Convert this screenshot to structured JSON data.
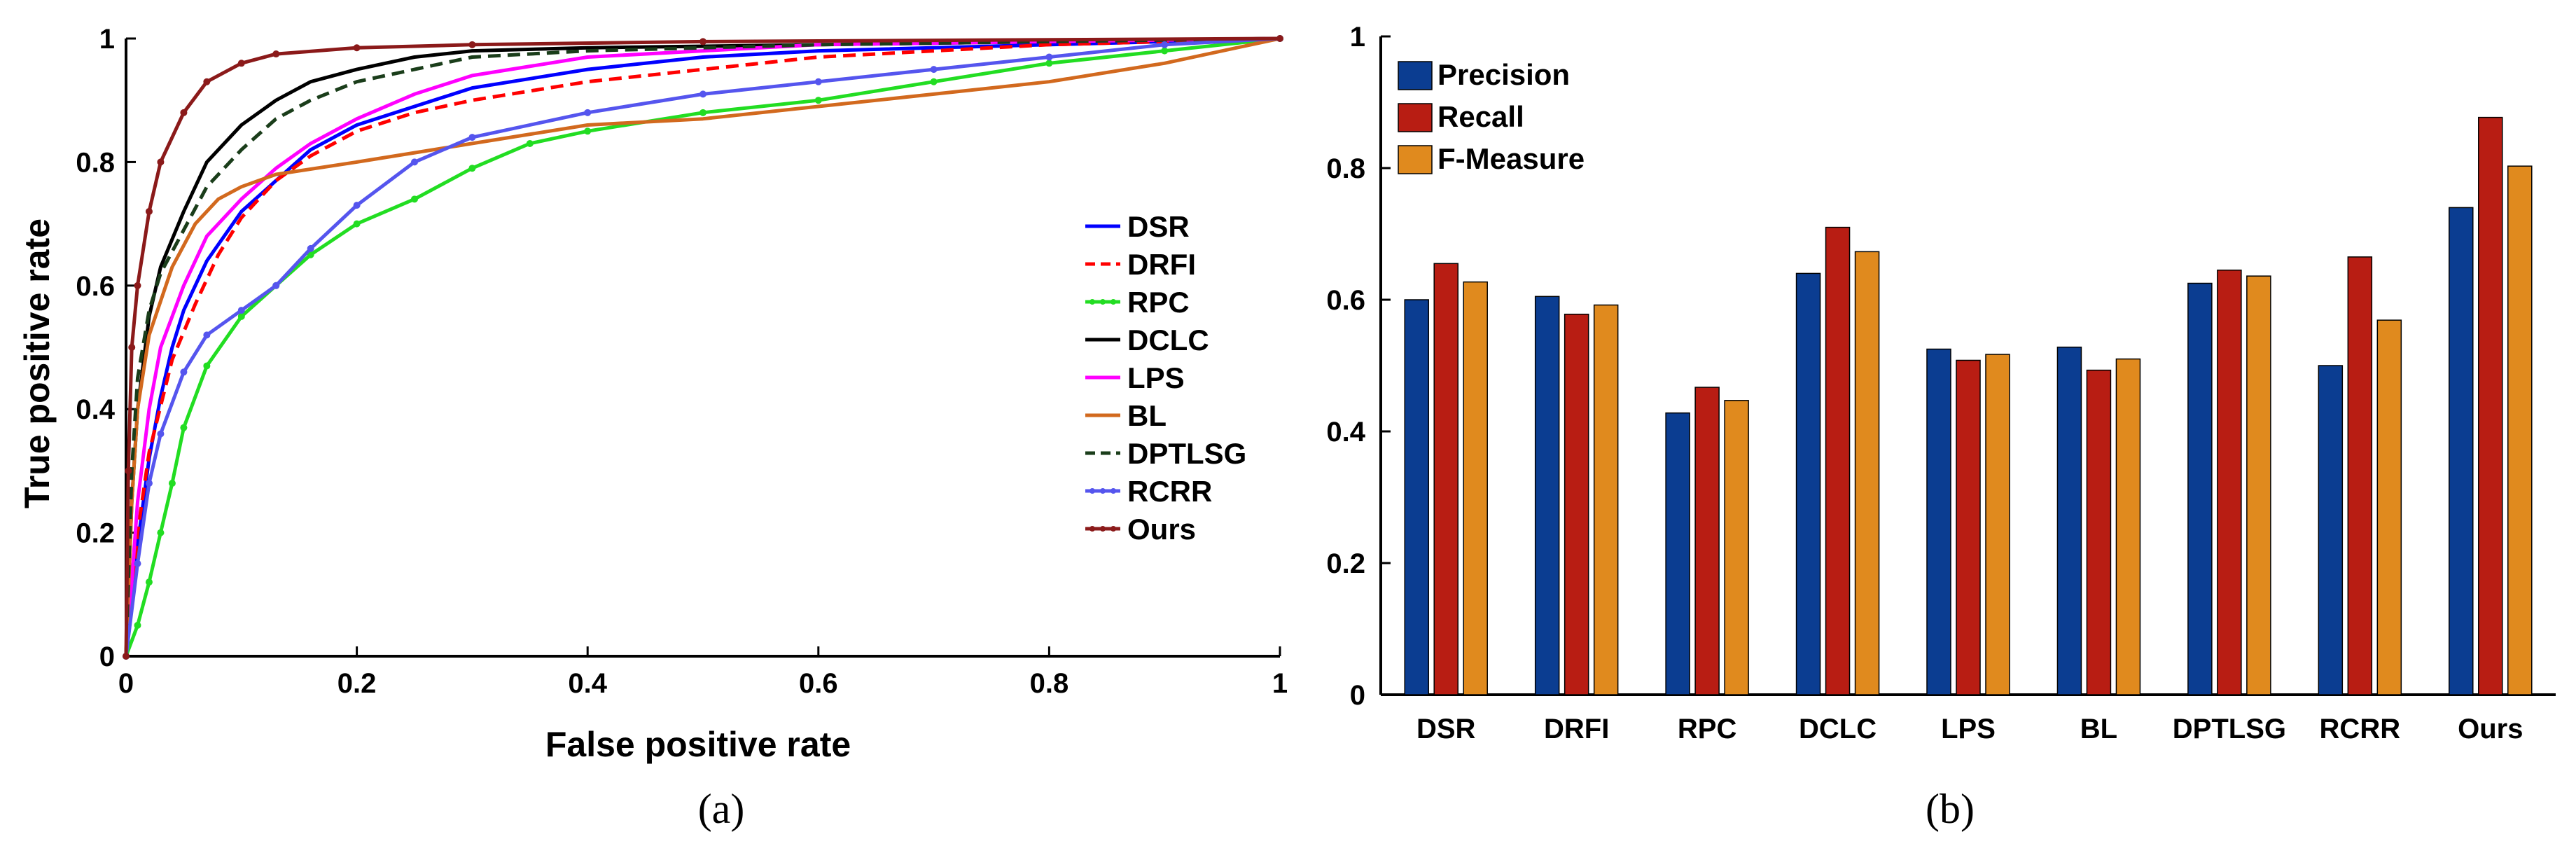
{
  "chart_data": [
    {
      "type": "line",
      "panel_label": "(a)",
      "xlabel": "False positive rate",
      "ylabel": "True positive rate",
      "xlim": [
        0,
        1
      ],
      "ylim": [
        0,
        1
      ],
      "xticks": [
        "0",
        "0.2",
        "0.4",
        "0.6",
        "0.8",
        "1"
      ],
      "yticks": [
        "0",
        "0.2",
        "0.4",
        "0.6",
        "0.8",
        "1"
      ],
      "legend_position": "right",
      "series": [
        {
          "name": "DSR",
          "color": "#0000ff",
          "dash": "solid",
          "points": [
            [
              0,
              0
            ],
            [
              0.005,
              0.08
            ],
            [
              0.01,
              0.18
            ],
            [
              0.02,
              0.32
            ],
            [
              0.03,
              0.42
            ],
            [
              0.04,
              0.5
            ],
            [
              0.05,
              0.56
            ],
            [
              0.07,
              0.64
            ],
            [
              0.1,
              0.72
            ],
            [
              0.13,
              0.77
            ],
            [
              0.16,
              0.82
            ],
            [
              0.2,
              0.86
            ],
            [
              0.25,
              0.89
            ],
            [
              0.3,
              0.92
            ],
            [
              0.4,
              0.95
            ],
            [
              0.5,
              0.97
            ],
            [
              0.6,
              0.98
            ],
            [
              0.8,
              0.99
            ],
            [
              1,
              1
            ]
          ]
        },
        {
          "name": "DRFI",
          "color": "#ff0000",
          "dash": "dashed",
          "points": [
            [
              0,
              0
            ],
            [
              0.005,
              0.1
            ],
            [
              0.01,
              0.2
            ],
            [
              0.02,
              0.33
            ],
            [
              0.04,
              0.48
            ],
            [
              0.06,
              0.57
            ],
            [
              0.08,
              0.65
            ],
            [
              0.1,
              0.71
            ],
            [
              0.13,
              0.77
            ],
            [
              0.16,
              0.81
            ],
            [
              0.2,
              0.85
            ],
            [
              0.25,
              0.88
            ],
            [
              0.3,
              0.9
            ],
            [
              0.4,
              0.93
            ],
            [
              0.5,
              0.95
            ],
            [
              0.6,
              0.97
            ],
            [
              0.8,
              0.99
            ],
            [
              1,
              1
            ]
          ]
        },
        {
          "name": "RPC",
          "color": "#22dd22",
          "dash": "dotted-line",
          "points": [
            [
              0,
              0
            ],
            [
              0.01,
              0.05
            ],
            [
              0.02,
              0.12
            ],
            [
              0.03,
              0.2
            ],
            [
              0.04,
              0.28
            ],
            [
              0.05,
              0.37
            ],
            [
              0.07,
              0.47
            ],
            [
              0.1,
              0.55
            ],
            [
              0.13,
              0.6
            ],
            [
              0.16,
              0.65
            ],
            [
              0.2,
              0.7
            ],
            [
              0.25,
              0.74
            ],
            [
              0.3,
              0.79
            ],
            [
              0.35,
              0.83
            ],
            [
              0.4,
              0.85
            ],
            [
              0.5,
              0.88
            ],
            [
              0.6,
              0.9
            ],
            [
              0.7,
              0.93
            ],
            [
              0.8,
              0.96
            ],
            [
              0.9,
              0.98
            ],
            [
              1,
              1
            ]
          ]
        },
        {
          "name": "DCLC",
          "color": "#000000",
          "dash": "solid",
          "points": [
            [
              0,
              0
            ],
            [
              0.005,
              0.25
            ],
            [
              0.01,
              0.4
            ],
            [
              0.02,
              0.55
            ],
            [
              0.03,
              0.63
            ],
            [
              0.05,
              0.72
            ],
            [
              0.07,
              0.8
            ],
            [
              0.1,
              0.86
            ],
            [
              0.13,
              0.9
            ],
            [
              0.16,
              0.93
            ],
            [
              0.2,
              0.95
            ],
            [
              0.25,
              0.97
            ],
            [
              0.3,
              0.98
            ],
            [
              0.4,
              0.985
            ],
            [
              0.6,
              0.99
            ],
            [
              0.8,
              0.995
            ],
            [
              1,
              1
            ]
          ]
        },
        {
          "name": "LPS",
          "color": "#ff00ff",
          "dash": "solid",
          "points": [
            [
              0,
              0
            ],
            [
              0.005,
              0.12
            ],
            [
              0.01,
              0.25
            ],
            [
              0.02,
              0.4
            ],
            [
              0.03,
              0.5
            ],
            [
              0.05,
              0.6
            ],
            [
              0.07,
              0.68
            ],
            [
              0.1,
              0.74
            ],
            [
              0.13,
              0.79
            ],
            [
              0.16,
              0.83
            ],
            [
              0.2,
              0.87
            ],
            [
              0.25,
              0.91
            ],
            [
              0.3,
              0.94
            ],
            [
              0.4,
              0.97
            ],
            [
              0.5,
              0.98
            ],
            [
              0.6,
              0.99
            ],
            [
              0.8,
              0.995
            ],
            [
              1,
              1
            ]
          ]
        },
        {
          "name": "BL",
          "color": "#d2691e",
          "dash": "solid",
          "points": [
            [
              0,
              0
            ],
            [
              0.005,
              0.25
            ],
            [
              0.01,
              0.4
            ],
            [
              0.02,
              0.52
            ],
            [
              0.04,
              0.63
            ],
            [
              0.06,
              0.7
            ],
            [
              0.08,
              0.74
            ],
            [
              0.1,
              0.76
            ],
            [
              0.13,
              0.78
            ],
            [
              0.2,
              0.8
            ],
            [
              0.3,
              0.83
            ],
            [
              0.4,
              0.86
            ],
            [
              0.5,
              0.87
            ],
            [
              0.6,
              0.89
            ],
            [
              0.7,
              0.91
            ],
            [
              0.8,
              0.93
            ],
            [
              0.9,
              0.96
            ],
            [
              1,
              1
            ]
          ]
        },
        {
          "name": "DPTLSG",
          "color": "#1a3d1a",
          "dash": "dashed",
          "points": [
            [
              0,
              0
            ],
            [
              0.005,
              0.3
            ],
            [
              0.01,
              0.45
            ],
            [
              0.02,
              0.56
            ],
            [
              0.03,
              0.62
            ],
            [
              0.05,
              0.69
            ],
            [
              0.07,
              0.76
            ],
            [
              0.1,
              0.82
            ],
            [
              0.13,
              0.87
            ],
            [
              0.16,
              0.9
            ],
            [
              0.2,
              0.93
            ],
            [
              0.25,
              0.95
            ],
            [
              0.3,
              0.97
            ],
            [
              0.4,
              0.98
            ],
            [
              0.6,
              0.99
            ],
            [
              1,
              1
            ]
          ]
        },
        {
          "name": "RCRR",
          "color": "#5555ee",
          "dash": "dotted-line",
          "points": [
            [
              0,
              0
            ],
            [
              0.01,
              0.15
            ],
            [
              0.02,
              0.28
            ],
            [
              0.03,
              0.36
            ],
            [
              0.05,
              0.46
            ],
            [
              0.07,
              0.52
            ],
            [
              0.1,
              0.56
            ],
            [
              0.13,
              0.6
            ],
            [
              0.16,
              0.66
            ],
            [
              0.2,
              0.73
            ],
            [
              0.25,
              0.8
            ],
            [
              0.3,
              0.84
            ],
            [
              0.4,
              0.88
            ],
            [
              0.5,
              0.91
            ],
            [
              0.6,
              0.93
            ],
            [
              0.7,
              0.95
            ],
            [
              0.8,
              0.97
            ],
            [
              0.9,
              0.99
            ],
            [
              1,
              1
            ]
          ]
        },
        {
          "name": "Ours",
          "color": "#8b1a1a",
          "dash": "dotted-line",
          "points": [
            [
              0,
              0
            ],
            [
              0.002,
              0.3
            ],
            [
              0.005,
              0.5
            ],
            [
              0.01,
              0.6
            ],
            [
              0.02,
              0.72
            ],
            [
              0.03,
              0.8
            ],
            [
              0.05,
              0.88
            ],
            [
              0.07,
              0.93
            ],
            [
              0.1,
              0.96
            ],
            [
              0.13,
              0.975
            ],
            [
              0.2,
              0.985
            ],
            [
              0.3,
              0.99
            ],
            [
              0.5,
              0.995
            ],
            [
              1,
              1
            ]
          ]
        }
      ]
    },
    {
      "type": "bar",
      "panel_label": "(b)",
      "ylim": [
        0,
        1
      ],
      "yticks": [
        "0",
        "0.2",
        "0.4",
        "0.6",
        "0.8",
        "1"
      ],
      "legend_position": "top-left",
      "categories": [
        "DSR",
        "DRFI",
        "RPC",
        "DCLC",
        "LPS",
        "BL",
        "DPTLSG",
        "RCRR",
        "Ours"
      ],
      "series": [
        {
          "name": "Precision",
          "color": "#0b3d91",
          "values": [
            0.6,
            0.605,
            0.428,
            0.64,
            0.525,
            0.528,
            0.625,
            0.5,
            0.74
          ]
        },
        {
          "name": "Recall",
          "color": "#b81d13",
          "values": [
            0.655,
            0.578,
            0.467,
            0.71,
            0.508,
            0.493,
            0.645,
            0.665,
            0.877
          ]
        },
        {
          "name": "F-Measure",
          "color": "#e08a1e",
          "values": [
            0.627,
            0.592,
            0.447,
            0.673,
            0.517,
            0.51,
            0.636,
            0.569,
            0.803
          ]
        }
      ]
    }
  ]
}
